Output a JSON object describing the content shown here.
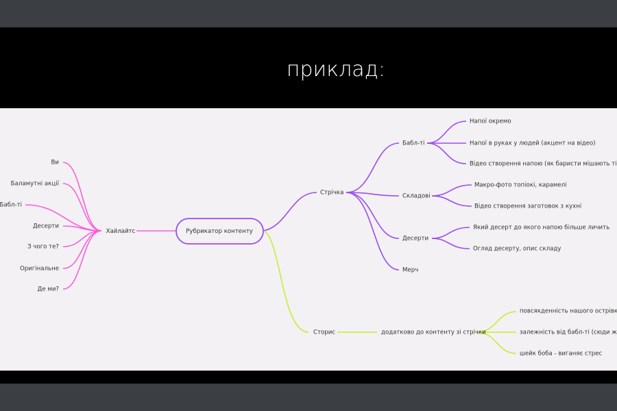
{
  "slide_title": "приклад:",
  "colors": {
    "highlights": "#f95fdc",
    "feed": "#9a4cf2",
    "stories": "#c8ec34",
    "canvas": "#f3f1f3"
  },
  "mindmap": {
    "root": "Рубрикатор контенту",
    "highlights": {
      "label": "Хайлайтс",
      "items": [
        "Ви",
        "Баламутні акції",
        "Бабл-ті",
        "Десерти",
        "З чого те?",
        "Оригінальне",
        "Де ми?"
      ]
    },
    "feed": {
      "label": "Стрічка",
      "children": [
        {
          "label": "Бабл-ті",
          "items": [
            "Напої окремо",
            "Напої в руках у людей (акцент на відео)",
            "Відео створення напою (як баристи мішають ті)"
          ]
        },
        {
          "label": "Складові",
          "items": [
            "Макро-фото топіокі, карамелі",
            "Відео створення заготовок з кухні"
          ]
        },
        {
          "label": "Десерти",
          "items": [
            "Який десерт до якого напою більше личить",
            "Огляд десерту, опис складу"
          ]
        },
        {
          "label": "Мерч",
          "items": []
        }
      ]
    },
    "stories": {
      "label": "Сторис",
      "child": "додатково до контенту зі стрічки",
      "items": [
        "повсякденність нашого острівка",
        "залежність від бабл-ті (сюди ж пост",
        "шейк боба - виганяє стрес"
      ]
    }
  }
}
